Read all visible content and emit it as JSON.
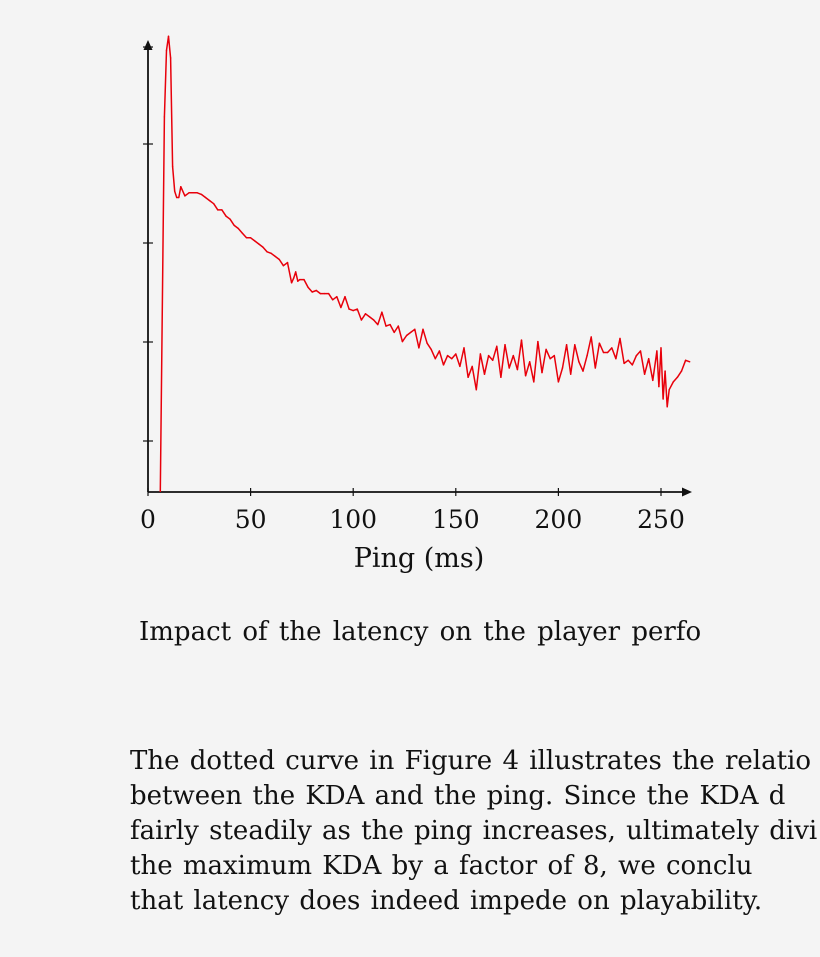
{
  "chart_data": {
    "type": "line",
    "xlabel": "Ping (ms)",
    "ylabel": "",
    "xlim": [
      0,
      265
    ],
    "x_ticks": [
      0,
      50,
      100,
      150,
      200,
      250
    ],
    "grid": false,
    "series": [
      {
        "color": "#e8000b",
        "x": [
          6,
          8,
          9,
          10,
          11,
          12,
          13,
          14,
          15,
          16,
          18,
          20,
          22,
          24,
          26,
          28,
          30,
          32,
          34,
          36,
          38,
          40,
          42,
          44,
          46,
          48,
          50,
          52,
          54,
          56,
          58,
          60,
          62,
          64,
          66,
          68,
          70,
          71,
          72,
          73,
          74,
          76,
          78,
          80,
          82,
          84,
          86,
          88,
          90,
          92,
          94,
          96,
          98,
          100,
          102,
          104,
          106,
          108,
          110,
          112,
          114,
          116,
          118,
          120,
          122,
          124,
          126,
          128,
          130,
          132,
          134,
          136,
          138,
          140,
          142,
          144,
          146,
          148,
          150,
          152,
          154,
          156,
          158,
          160,
          162,
          164,
          166,
          168,
          170,
          172,
          174,
          176,
          178,
          180,
          182,
          184,
          186,
          188,
          190,
          192,
          194,
          196,
          198,
          200,
          202,
          204,
          206,
          208,
          210,
          212,
          214,
          216,
          218,
          220,
          222,
          224,
          226,
          228,
          230,
          232,
          234,
          236,
          238,
          240,
          242,
          244,
          246,
          248,
          249,
          250,
          251,
          252,
          253,
          254,
          256,
          258,
          260,
          262,
          264
        ],
        "y": [
          0.0,
          24.2,
          28.5,
          29.4,
          28.0,
          21.0,
          19.4,
          19.0,
          19.0,
          19.7,
          19.1,
          19.3,
          19.3,
          19.3,
          19.2,
          19.0,
          18.8,
          18.6,
          18.2,
          18.2,
          17.8,
          17.6,
          17.2,
          17.0,
          16.7,
          16.4,
          16.4,
          16.2,
          16.0,
          15.8,
          15.5,
          15.4,
          15.2,
          15.0,
          14.6,
          14.8,
          13.5,
          13.8,
          14.2,
          13.6,
          13.7,
          13.7,
          13.2,
          12.9,
          13.0,
          12.8,
          12.8,
          12.8,
          12.4,
          12.6,
          11.9,
          12.6,
          11.8,
          11.7,
          11.8,
          11.1,
          11.5,
          11.3,
          11.1,
          10.8,
          11.6,
          10.7,
          10.8,
          10.3,
          10.7,
          9.7,
          10.1,
          10.3,
          10.5,
          9.3,
          10.5,
          9.6,
          9.2,
          8.6,
          9.1,
          8.2,
          8.8,
          8.6,
          8.9,
          8.1,
          9.3,
          7.4,
          8.1,
          6.6,
          8.9,
          7.6,
          8.8,
          8.5,
          9.4,
          7.4,
          9.5,
          8.0,
          8.8,
          7.9,
          9.8,
          7.5,
          8.4,
          7.1,
          9.7,
          7.7,
          9.2,
          8.6,
          8.8,
          7.1,
          8.0,
          9.5,
          7.6,
          9.5,
          8.4,
          7.8,
          8.8,
          10.0,
          8.0,
          9.6,
          9.0,
          9.0,
          9.3,
          8.6,
          9.9,
          8.3,
          8.5,
          8.2,
          8.8,
          9.1,
          7.6,
          8.6,
          7.2,
          9.1,
          6.8,
          9.3,
          6.0,
          7.8,
          5.5,
          6.6,
          7.1,
          7.4,
          7.8,
          8.5,
          8.4
        ]
      }
    ]
  },
  "caption": "Impact of the latency on the player perfo",
  "paragraph_lines": [
    "The dotted curve in Figure 4 illustrates the relatio",
    "between the KDA and the ping.  Since the KDA d",
    "fairly steadily as the ping increases, ultimately divi",
    "the maximum KDA by a factor of 8, we conclu",
    "that latency does indeed impede on playability."
  ]
}
